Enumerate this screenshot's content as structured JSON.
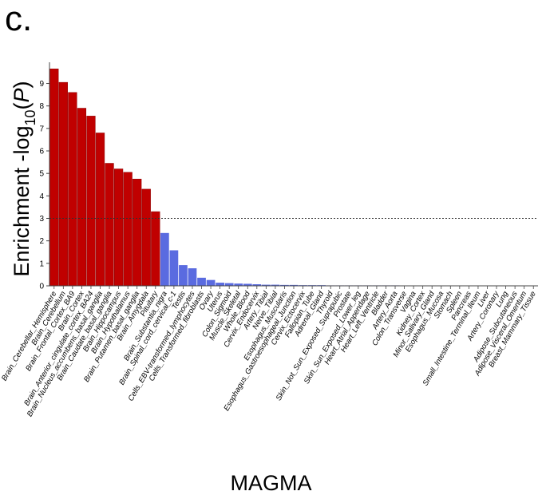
{
  "panel_label": "c.",
  "colors": {
    "significant": "#c00000",
    "nonsignificant": "#5a6be0",
    "threshold_line": "#333333"
  },
  "chart_data": {
    "type": "bar",
    "title": "",
    "xlabel": "MAGMA",
    "ylabel_parts": {
      "prefix": "Enrichment -log",
      "subscript": "10",
      "open": "(",
      "italic": "P",
      "close": ")"
    },
    "ylim": [
      0,
      9.8
    ],
    "yticks": [
      0,
      1,
      2,
      3,
      4,
      5,
      6,
      7,
      8,
      9
    ],
    "threshold": 3.0,
    "grid": false,
    "categories": [
      "Brain_Cerebellar_Hemisphere",
      "Brain_Cerebellum",
      "Brain_Frontal_Cortex_BA9",
      "Brain_Cortex",
      "Brain_Anterior_cingulate_cortex_BA24",
      "Brain_Nucleus_accumbens_basal_ganglia",
      "Brain_Caudate_basal_ganglia",
      "Brain_Hippocampus",
      "Brain_Hypothalamus",
      "Brain_Putamen_basal_ganglia",
      "Brain_Amygdala",
      "Pituitary",
      "Brain_Substantia_nigra",
      "Brain_Spinal_cord_cervical_c-1",
      "Testis",
      "Cells_EBV-transformed_lymphocytes",
      "Cells_Transformed_fibroblasts",
      "Ovary",
      "Uterus",
      "Colon_Sigmoid",
      "Muscle_Skeletal",
      "Whole_Blood",
      "Cervix_Endocervix",
      "Artery_Tibial",
      "Nerve_Tibial",
      "Esophagus_Muscularis",
      "Esophagus_Gastroesophageal_Junction",
      "Cervix_Ectocervix",
      "Fallopian_Tube",
      "Adrenal_Gland",
      "Thyroid",
      "Skin_Not_Sun_Exposed_Suprapubic",
      "Prostate",
      "Skin_Sun_Exposed_Lower_leg",
      "Heart_Atrial_Appendage",
      "Heart_Left_Ventricle",
      "Bladder",
      "Artery_Aorta",
      "Colon_Transverse",
      "Vagina",
      "Kidney_Cortex",
      "Minor_Salivary_Gland",
      "Esophagus_Mucosa",
      "Stomach",
      "Spleen",
      "Pancreas",
      "Small_Intestine_Terminal_Ileum",
      "Liver",
      "Artery_Coronary",
      "Lung",
      "Adipose_Subcutaneous",
      "Adipose_Visceral_Omentum",
      "Breast_Mammary_Tissue"
    ],
    "values": [
      9.65,
      9.05,
      8.6,
      7.9,
      7.55,
      6.8,
      5.45,
      5.2,
      5.05,
      4.75,
      4.3,
      3.3,
      2.35,
      1.58,
      0.92,
      0.78,
      0.36,
      0.26,
      0.14,
      0.12,
      0.1,
      0.09,
      0.07,
      0.05,
      0.05,
      0.04,
      0.04,
      0.03,
      0.03,
      0.03,
      0.02,
      0.02,
      0.02,
      0.02,
      0.02,
      0.02,
      0.02,
      0.02,
      0.01,
      0.01,
      0.01,
      0.01,
      0.01,
      0.01,
      0.01,
      0.01,
      0.01,
      0.01,
      0.01,
      0.01,
      0.01,
      0.01,
      0.01
    ]
  }
}
